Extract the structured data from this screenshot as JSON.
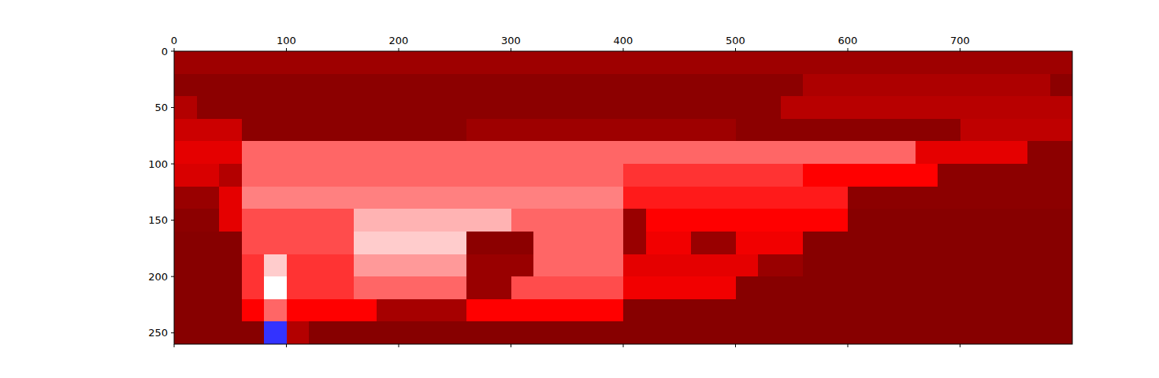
{
  "chart_data": {
    "type": "heatmap",
    "color": "seismic",
    "zlim": [
      -1,
      1
    ],
    "xlim": [
      0,
      800
    ],
    "ylim": [
      260,
      0
    ],
    "xticks": [
      0,
      100,
      200,
      300,
      400,
      500,
      600,
      700
    ],
    "yticks": [
      0,
      50,
      100,
      150,
      200,
      250
    ],
    "x": [
      10,
      30,
      50,
      70,
      90,
      110,
      130,
      150,
      170,
      190,
      210,
      230,
      250,
      270,
      290,
      310,
      330,
      350,
      370,
      390,
      410,
      430,
      450,
      470,
      490,
      510,
      530,
      550,
      570,
      590,
      610,
      630,
      650,
      670,
      690,
      710,
      730,
      750,
      770,
      790
    ],
    "y": [
      10,
      30,
      50,
      70,
      90,
      110,
      130,
      150,
      170,
      190,
      210,
      230,
      250
    ],
    "values": [
      [
        0.88,
        0.88,
        0.88,
        0.88,
        0.88,
        0.88,
        0.88,
        0.88,
        0.88,
        0.88,
        0.88,
        0.88,
        0.88,
        0.88,
        0.88,
        0.88,
        0.88,
        0.88,
        0.88,
        0.88,
        0.88,
        0.88,
        0.88,
        0.88,
        0.88,
        0.88,
        0.88,
        0.88,
        0.88,
        0.88,
        0.88,
        0.88,
        0.88,
        0.88,
        0.88,
        0.88,
        0.88,
        0.88,
        0.88,
        0.88
      ],
      [
        0.95,
        0.95,
        0.95,
        0.95,
        0.95,
        0.95,
        0.95,
        0.95,
        0.95,
        0.95,
        0.95,
        0.95,
        0.95,
        0.95,
        0.95,
        0.95,
        0.95,
        0.95,
        0.95,
        0.95,
        0.95,
        0.95,
        0.95,
        0.95,
        0.95,
        0.95,
        0.95,
        0.95,
        0.82,
        0.82,
        0.82,
        0.82,
        0.82,
        0.82,
        0.82,
        0.82,
        0.82,
        0.82,
        0.82,
        0.95
      ],
      [
        0.8,
        0.95,
        0.95,
        0.95,
        0.95,
        0.95,
        0.95,
        0.95,
        0.95,
        0.95,
        0.95,
        0.95,
        0.95,
        0.95,
        0.95,
        0.95,
        0.95,
        0.95,
        0.95,
        0.95,
        0.95,
        0.95,
        0.95,
        0.95,
        0.95,
        0.95,
        0.95,
        0.78,
        0.78,
        0.78,
        0.78,
        0.78,
        0.78,
        0.78,
        0.78,
        0.78,
        0.78,
        0.78,
        0.78,
        0.78
      ],
      [
        0.7,
        0.7,
        0.7,
        0.95,
        0.95,
        0.95,
        0.95,
        0.95,
        0.95,
        0.95,
        0.95,
        0.95,
        0.95,
        0.88,
        0.88,
        0.88,
        0.88,
        0.88,
        0.88,
        0.88,
        0.88,
        0.88,
        0.88,
        0.88,
        0.88,
        0.95,
        0.95,
        0.95,
        0.95,
        0.95,
        0.95,
        0.95,
        0.95,
        0.95,
        0.95,
        0.75,
        0.75,
        0.75,
        0.75,
        0.75
      ],
      [
        0.6,
        0.6,
        0.6,
        0.3,
        0.3,
        0.3,
        0.3,
        0.3,
        0.3,
        0.3,
        0.3,
        0.3,
        0.3,
        0.3,
        0.3,
        0.3,
        0.3,
        0.3,
        0.3,
        0.3,
        0.3,
        0.3,
        0.3,
        0.3,
        0.3,
        0.3,
        0.3,
        0.3,
        0.3,
        0.3,
        0.3,
        0.3,
        0.3,
        0.6,
        0.6,
        0.6,
        0.6,
        0.6,
        0.95,
        0.95
      ],
      [
        0.65,
        0.65,
        0.8,
        0.3,
        0.3,
        0.3,
        0.3,
        0.3,
        0.3,
        0.3,
        0.3,
        0.3,
        0.3,
        0.3,
        0.3,
        0.3,
        0.3,
        0.3,
        0.3,
        0.3,
        0.4,
        0.4,
        0.4,
        0.4,
        0.4,
        0.4,
        0.4,
        0.4,
        0.5,
        0.5,
        0.5,
        0.5,
        0.5,
        0.5,
        0.95,
        0.95,
        0.95,
        0.95,
        0.95,
        0.95
      ],
      [
        0.9,
        0.9,
        0.6,
        0.25,
        0.25,
        0.25,
        0.25,
        0.25,
        0.25,
        0.25,
        0.25,
        0.25,
        0.25,
        0.25,
        0.25,
        0.25,
        0.25,
        0.25,
        0.25,
        0.25,
        0.45,
        0.45,
        0.45,
        0.45,
        0.45,
        0.45,
        0.45,
        0.45,
        0.45,
        0.45,
        0.95,
        0.95,
        0.95,
        0.95,
        0.95,
        0.95,
        0.95,
        0.95,
        0.95,
        0.95
      ],
      [
        0.95,
        0.95,
        0.6,
        0.35,
        0.35,
        0.35,
        0.35,
        0.35,
        0.15,
        0.15,
        0.15,
        0.15,
        0.15,
        0.15,
        0.15,
        0.3,
        0.3,
        0.3,
        0.3,
        0.3,
        0.9,
        0.5,
        0.5,
        0.5,
        0.5,
        0.5,
        0.5,
        0.5,
        0.5,
        0.5,
        0.97,
        0.97,
        0.97,
        0.97,
        0.97,
        0.97,
        0.97,
        0.97,
        0.97,
        0.97
      ],
      [
        0.97,
        0.97,
        0.97,
        0.35,
        0.35,
        0.35,
        0.35,
        0.35,
        0.1,
        0.1,
        0.1,
        0.1,
        0.1,
        0.95,
        0.95,
        0.95,
        0.3,
        0.3,
        0.3,
        0.3,
        0.9,
        0.55,
        0.55,
        0.9,
        0.9,
        0.55,
        0.55,
        0.55,
        0.97,
        0.97,
        0.97,
        0.97,
        0.97,
        0.97,
        0.97,
        0.97,
        0.97,
        0.97,
        0.97,
        0.97
      ],
      [
        0.97,
        0.97,
        0.97,
        0.4,
        0.1,
        0.4,
        0.4,
        0.4,
        0.2,
        0.2,
        0.2,
        0.2,
        0.2,
        0.9,
        0.9,
        0.9,
        0.3,
        0.3,
        0.3,
        0.3,
        0.6,
        0.6,
        0.6,
        0.6,
        0.6,
        0.6,
        0.9,
        0.9,
        0.97,
        0.97,
        0.97,
        0.97,
        0.97,
        0.97,
        0.97,
        0.97,
        0.97,
        0.97,
        0.97,
        0.97
      ],
      [
        0.97,
        0.97,
        0.97,
        0.4,
        0,
        0.4,
        0.4,
        0.4,
        0.3,
        0.3,
        0.3,
        0.3,
        0.3,
        0.9,
        0.9,
        0.35,
        0.35,
        0.35,
        0.35,
        0.35,
        0.55,
        0.55,
        0.55,
        0.55,
        0.55,
        0.97,
        0.97,
        0.97,
        0.97,
        0.97,
        0.97,
        0.97,
        0.97,
        0.97,
        0.97,
        0.97,
        0.97,
        0.97,
        0.97,
        0.97
      ],
      [
        0.97,
        0.97,
        0.97,
        0.5,
        0.3,
        0.5,
        0.5,
        0.5,
        0.5,
        0.85,
        0.85,
        0.85,
        0.85,
        0.5,
        0.5,
        0.5,
        0.5,
        0.5,
        0.5,
        0.5,
        0.97,
        0.97,
        0.97,
        0.97,
        0.97,
        0.97,
        0.97,
        0.97,
        0.97,
        0.97,
        0.97,
        0.97,
        0.97,
        0.97,
        0.97,
        0.97,
        0.97,
        0.97,
        0.97,
        0.97
      ],
      [
        0.97,
        0.97,
        0.97,
        0.97,
        -0.4,
        0.8,
        0.97,
        0.97,
        0.97,
        0.97,
        0.97,
        0.97,
        0.97,
        0.97,
        0.97,
        0.97,
        0.97,
        0.97,
        0.97,
        0.97,
        0.97,
        0.97,
        0.97,
        0.97,
        0.97,
        0.97,
        0.97,
        0.97,
        0.97,
        0.97,
        0.97,
        0.97,
        0.97,
        0.97,
        0.97,
        0.97,
        0.97,
        0.97,
        0.97,
        0.97
      ]
    ]
  }
}
